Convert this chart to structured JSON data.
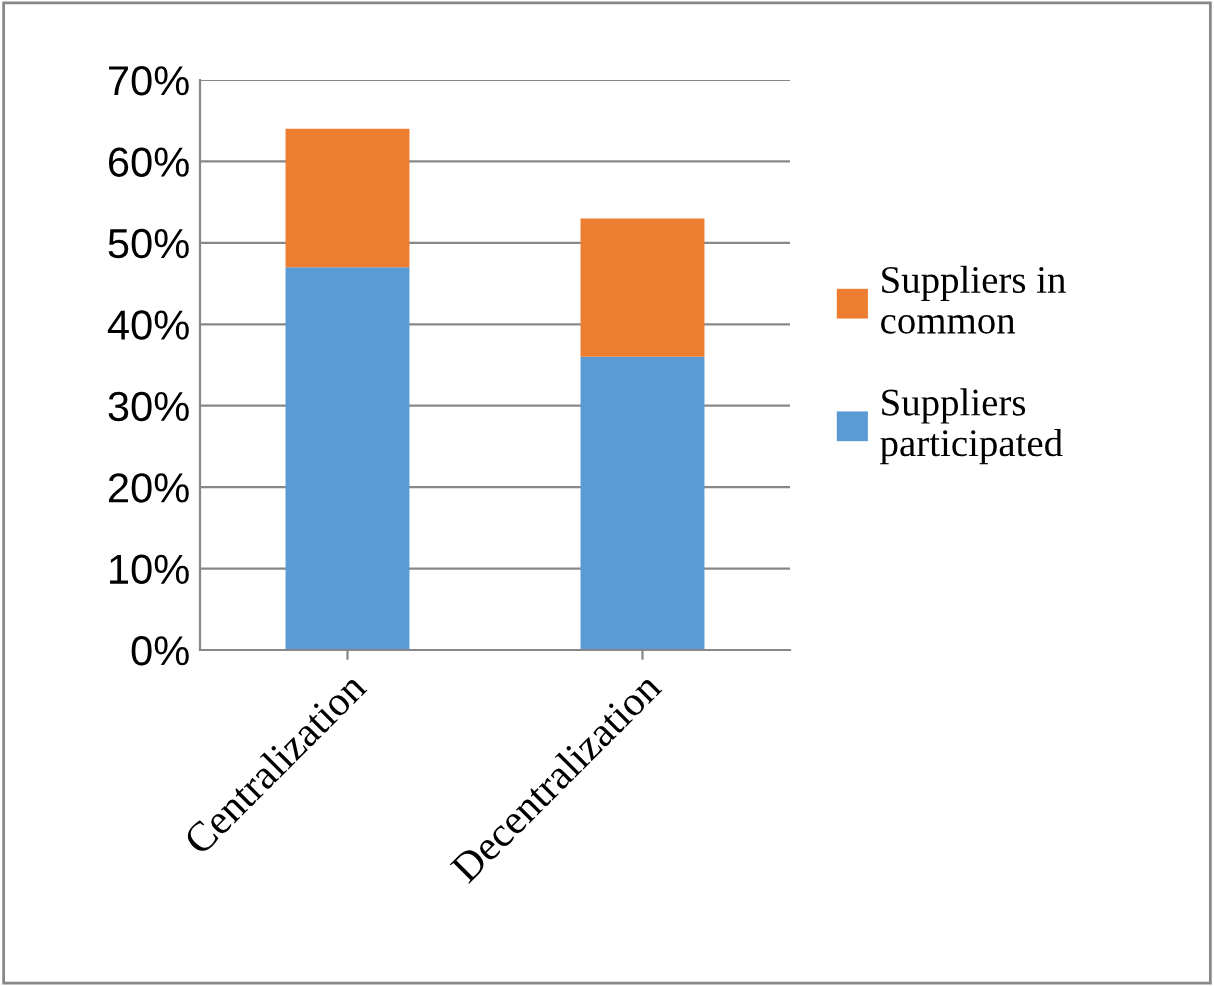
{
  "chart_data": {
    "type": "bar",
    "stacked": true,
    "categories": [
      "Centralization",
      "Decentralization"
    ],
    "series": [
      {
        "name": "Suppliers participated",
        "color": "#5b9bd5",
        "values": [
          47,
          36
        ]
      },
      {
        "name": "Suppliers in common",
        "color": "#ed7d31",
        "values": [
          17,
          17
        ]
      }
    ],
    "ylim": [
      0,
      70
    ],
    "yticks": [
      {
        "value": 0,
        "label": "0%"
      },
      {
        "value": 10,
        "label": "10%"
      },
      {
        "value": 20,
        "label": "20%"
      },
      {
        "value": 30,
        "label": "30%"
      },
      {
        "value": 40,
        "label": "40%"
      },
      {
        "value": 50,
        "label": "50%"
      },
      {
        "value": 60,
        "label": "60%"
      },
      {
        "value": 70,
        "label": "70%"
      }
    ],
    "grid": "y",
    "legend": "right"
  }
}
